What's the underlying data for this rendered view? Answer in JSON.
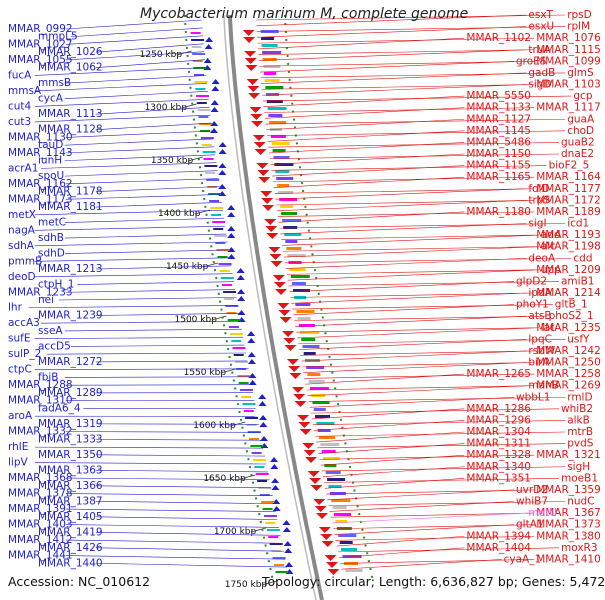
{
  "title": "Mycobacterium marinum M, complete genome",
  "footer": {
    "accession": "Accession: NC_010612",
    "summary": "Topology: circular; Length: 6,636,827 bp; Genes: 5,472"
  },
  "colors": {
    "left_strand": "#1f1fd0",
    "right_strand": "#e01515",
    "highlight_label": "#e870e8",
    "backbone": "#888888",
    "ticks": "#2a8a2a"
  },
  "scale_labels": [
    "1250 kbp",
    "1300 kbp",
    "1350 kbp",
    "1400 kbp",
    "1450 kbp",
    "1500 kbp",
    "1550 kbp",
    "1600 kbp",
    "1650 kbp",
    "1700 kbp",
    "1750 kbp"
  ],
  "left_labels": [
    "MMAR_0992",
    "mmpL5",
    "MMAR_1027",
    "MMAR_1026",
    "MMAR_1055",
    "MMAR_1062",
    "fucA",
    "mmsB",
    "mmsA",
    "cycA",
    "cut4",
    "MMAR_1113",
    "cut3",
    "MMAR_1128",
    "MMAR_1130",
    "tauD",
    "MMAR_1143",
    "iunH",
    "acrA1",
    "spoU",
    "MMAR_1162",
    "MMAR_1178",
    "MMAR_1173",
    "MMAR_1181",
    "metX",
    "metC",
    "nagA",
    "sdhB",
    "sdhA",
    "sdhD",
    "pmmB",
    "MMAR_1213",
    "deoD",
    "ctpH_1",
    "MMAR_1233",
    "nei",
    "lhr",
    "MMAR_1239",
    "accA3",
    "sseA",
    "sufE",
    "accD5",
    "sulP_2",
    "MMAR_1272",
    "ctpC",
    "fbiB",
    "MMAR_1288",
    "MMAR_1289",
    "MMAR_1310",
    "fadA6_4",
    "aroA",
    "MMAR_1319",
    "MMAR_1332",
    "MMAR_1333",
    "rhlE",
    "MMAR_1350",
    "lipV",
    "MMAR_1363",
    "MMAR_1368",
    "MMAR_1366",
    "MMAR_1378",
    "MMAR_1387",
    "MMAR_1391",
    "MMAR_1405",
    "MMAR_1403",
    "MMAR_1419",
    "MMAR_1412",
    "MMAR_1426",
    "MMAR_1441",
    "MMAR_1440"
  ],
  "right_labels": [
    "rpsD",
    "esxT",
    "rplM",
    "esxU",
    "MMAR_1076",
    "MMAR_1102",
    "MMAR_1115",
    "truA",
    "MMAR_1099",
    "groES",
    "glmS",
    "gadB",
    "MMAR_1103",
    "sigD",
    "gcp",
    "MMAR_5550",
    "MMAR_1117",
    "MMAR_1133",
    "guaA",
    "MMAR_1127",
    "choD",
    "MMAR_1145",
    "guaB2",
    "MMAR_5486",
    "dnaE2",
    "MMAR_1150",
    "bioF2_5",
    "MMAR_1155",
    "MMAR_1164",
    "MMAR_1165",
    "MMAR_1177",
    "folD",
    "MMAR_1172",
    "trpS",
    "MMAR_1189",
    "MMAR_1180",
    "icd1",
    "sigI",
    "MMAR_1193",
    "add",
    "MMAR_1198",
    "alc",
    "cdd",
    "deoA",
    "MMAR_1209",
    "upp",
    "amiB1",
    "glpD2",
    "MMAR_1214",
    "ipdA",
    "gltB_1",
    "phoY1",
    "phoS2_1",
    "atsB",
    "MMAR_1235",
    "lat",
    "usfY",
    "lpqC",
    "MMAR_1242",
    "rsbW",
    "MMAR_1250",
    "birA",
    "MMAR_1258",
    "MMAR_1265",
    "MMAR_1269",
    "manB",
    "rmlD",
    "wbbL1",
    "whiB2",
    "MMAR_1286",
    "alkB",
    "MMAR_1296",
    "mtrB",
    "MMAR_1304",
    "pvdS",
    "MMAR_1311",
    "MMAR_1321",
    "MMAR_1328",
    "sigH",
    "MMAR_1340",
    "moeB1",
    "MMAR_1351",
    "MMAR_1359",
    "uvrD2",
    "nudC",
    "whiB7",
    "MMAR_1367",
    "metU",
    "MMAR_1373",
    "gltA1",
    "MMAR_1380",
    "MMAR_1394",
    "moxR3",
    "MMAR_1404",
    "MMAR_1410",
    "cyaA_1"
  ]
}
